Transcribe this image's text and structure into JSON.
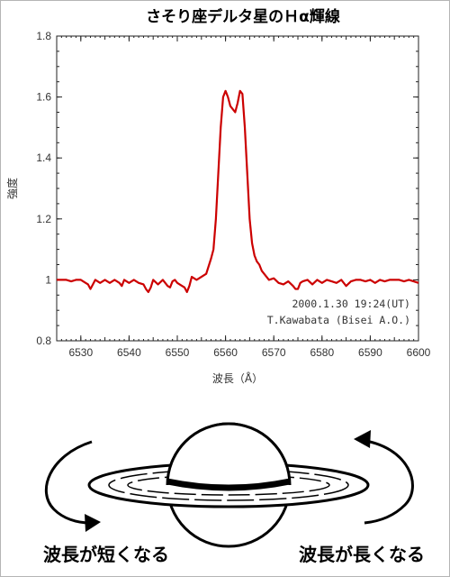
{
  "chart_data": {
    "type": "line",
    "title": "さそり座デルタ星のＨα輝線",
    "xlabel": "波長（Å）",
    "ylabel": "強度",
    "xlim": [
      6525,
      6600
    ],
    "ylim": [
      0.8,
      1.8
    ],
    "x_ticks": [
      6530,
      6540,
      6550,
      6560,
      6570,
      6580,
      6590,
      6600
    ],
    "y_ticks": [
      0.8,
      1,
      1.2,
      1.4,
      1.6,
      1.8
    ],
    "y_tick_labels": [
      "0.8",
      "1",
      "1.2",
      "1.4",
      "1.6",
      "1.8"
    ],
    "grid": false,
    "line_color": "#cc0000",
    "annotations": [
      "2000.1.30 19:24(UT)",
      "T.Kawabata (Bisei A.O.)"
    ],
    "series": [
      {
        "x": [
          6525,
          6526,
          6527,
          6528,
          6529,
          6530,
          6531,
          6531.5,
          6532,
          6532.5,
          6533,
          6534,
          6535,
          6536,
          6537,
          6538,
          6538.5,
          6539,
          6540,
          6541,
          6542,
          6543,
          6543.5,
          6544,
          6544.5,
          6545,
          6546,
          6547,
          6548,
          6548.5,
          6549,
          6549.5,
          6550,
          6551,
          6551.5,
          6552,
          6552.5,
          6553,
          6554,
          6555,
          6556,
          6557,
          6557.5,
          6558,
          6558.5,
          6559,
          6559.5,
          6560,
          6560.5,
          6561,
          6561.5,
          6562,
          6562.5,
          6563,
          6563.5,
          6564,
          6564.5,
          6565,
          6565.5,
          6566,
          6566.5,
          6567,
          6567.5,
          6568,
          6569,
          6570,
          6571,
          6572,
          6573,
          6574,
          6574.5,
          6575,
          6575.5,
          6576,
          6577,
          6578,
          6579,
          6580,
          6581,
          6582,
          6583,
          6584,
          6585,
          6586,
          6587,
          6588,
          6589,
          6590,
          6591,
          6592,
          6593,
          6594,
          6595,
          6596,
          6597,
          6598,
          6599,
          6600
        ],
        "y": [
          1.0,
          1.0,
          1.0,
          0.995,
          1.0,
          1.0,
          0.99,
          0.985,
          0.97,
          0.985,
          1.0,
          0.99,
          1.0,
          0.99,
          1.0,
          0.99,
          0.98,
          1.0,
          0.99,
          1.0,
          0.99,
          0.985,
          0.97,
          0.96,
          0.975,
          1.0,
          0.985,
          1.0,
          0.98,
          0.975,
          0.995,
          1.0,
          0.99,
          0.98,
          0.975,
          0.96,
          0.98,
          1.01,
          1.0,
          1.01,
          1.02,
          1.07,
          1.1,
          1.2,
          1.35,
          1.5,
          1.6,
          1.62,
          1.6,
          1.57,
          1.56,
          1.55,
          1.58,
          1.62,
          1.61,
          1.5,
          1.35,
          1.2,
          1.12,
          1.08,
          1.06,
          1.05,
          1.03,
          1.02,
          1.0,
          1.005,
          0.99,
          0.985,
          0.995,
          0.98,
          0.97,
          0.97,
          0.99,
          0.995,
          1.0,
          0.985,
          1.0,
          0.99,
          1.0,
          0.995,
          0.99,
          1.0,
          0.98,
          0.995,
          1.0,
          1.0,
          0.995,
          1.0,
          0.99,
          1.0,
          0.995,
          1.0,
          1.0,
          1.0,
          0.995,
          1.0,
          0.995,
          0.99
        ]
      }
    ]
  },
  "diagram": {
    "left_label": "波長が短くなる",
    "right_label": "波長が長くなる"
  }
}
